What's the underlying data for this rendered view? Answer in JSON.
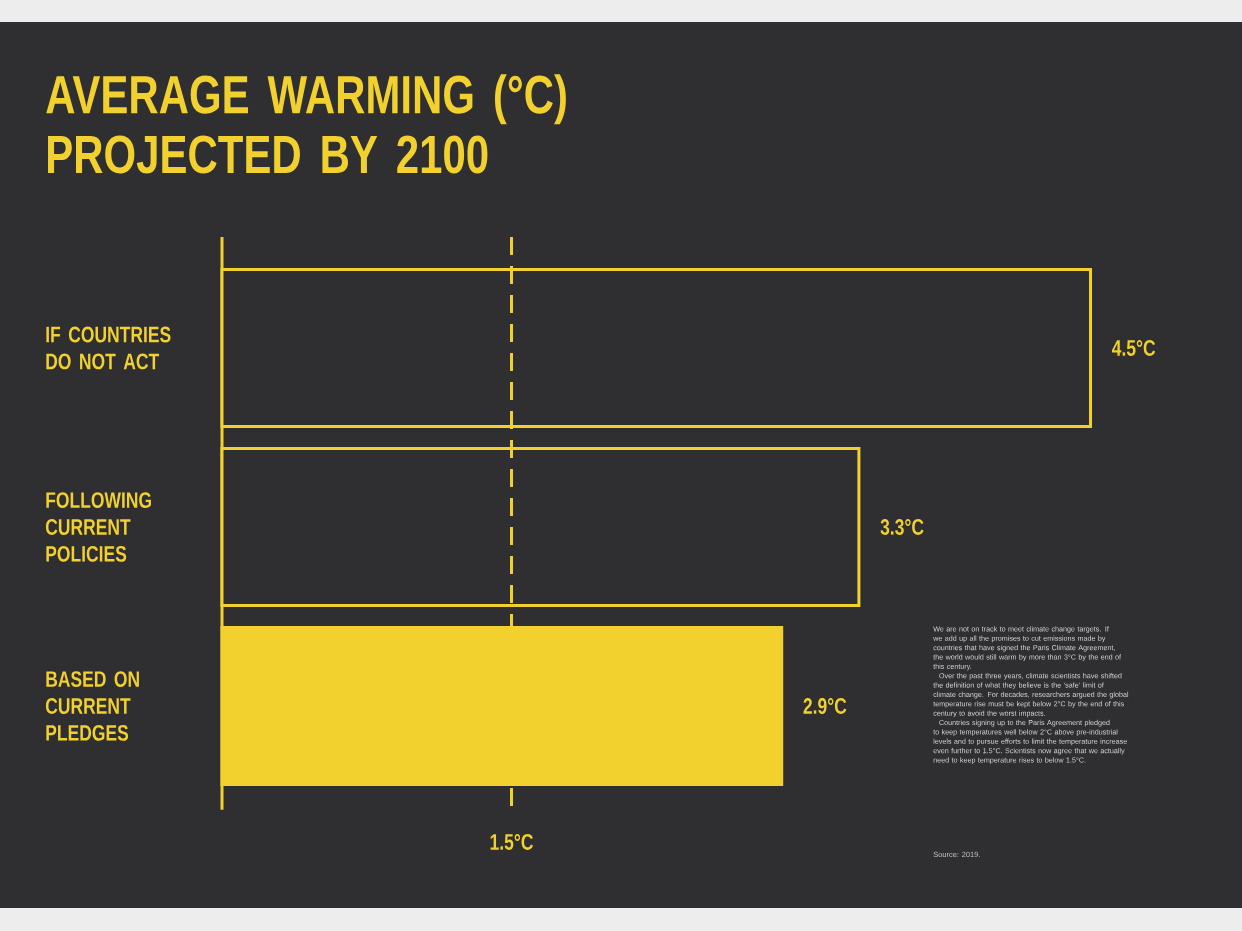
{
  "chart_data": {
    "type": "bar",
    "orientation": "horizontal",
    "title": "AVERAGE WARMING (°C) PROJECTED BY 2100",
    "categories": [
      "IF COUNTRIES DO NOT ACT",
      "FOLLOWING CURRENT POLICIES",
      "BASED ON CURRENT PLEDGES"
    ],
    "values": [
      4.5,
      3.3,
      2.9
    ],
    "value_labels": [
      "4.5°C",
      "3.3°C",
      "2.9°C"
    ],
    "color": "#f2d12e",
    "colors": [
      "#2f2f31",
      "#2f2f31",
      "#f2d12e"
    ],
    "tick_labels": "y",
    "ref_lines": [
      {
        "axis": "x",
        "value": 1.5,
        "label": "1.5°C",
        "line_style": "dashed",
        "color": "#f2d12e"
      }
    ],
    "annotations": [
      "We are not on track to meet climate change targets. If we add up all the promises to cut emissions made by countries that have signed the Paris Climate Agreement, the world would still warm by more than 3°C by the end of this century.",
      "Over the past three years, climate scientists have shifted the definition of what they believe is the ‘safe’ limit of climate change. For decades, researchers argued the global temperature rise must be kept below 2°C by the end of this century to avoid the worst impacts.",
      "Countries signing up to the Paris Agreement pledged to keep temperatures well below 2°C above pre-industrial levels and to pursue efforts to limit the temperature increase even further to 1.5°C. Scientists now agree that we actually need to keep temperature rises to below 1.5°C.",
      "Source: 2019."
    ]
  }
}
